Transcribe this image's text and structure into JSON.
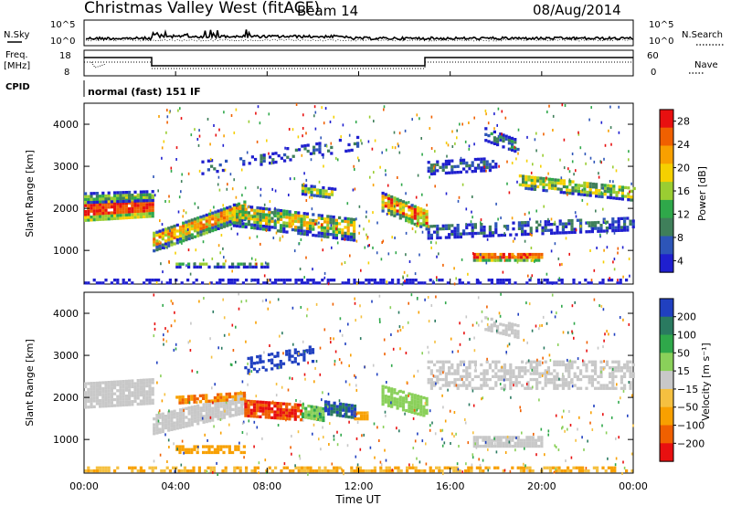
{
  "header": {
    "title": "Christmas Valley West (fitACF)",
    "beam": "Beam 14",
    "date": "08/Aug/2014"
  },
  "panels": {
    "nsky_label": "N.Sky",
    "nsky_ticks": [
      "10^5",
      "10^0"
    ],
    "nsearch_label": "N.Search",
    "nsearch_ticks": [
      "10^5",
      "10^0"
    ],
    "freq_label": "Freq.",
    "freq_unit": "[MHz]",
    "freq_ticks": [
      "18",
      "8"
    ],
    "nave_label": "Nave",
    "nave_ticks": [
      "60",
      "0"
    ],
    "cpid_label": "CPID",
    "cpid_value": "normal (fast) 151 IF"
  },
  "colors": {
    "power": [
      "#1f1fcf",
      "#2d55b8",
      "#3f7f5a",
      "#2fa84a",
      "#9acd32",
      "#f5d000",
      "#f8a000",
      "#f06000",
      "#e81010"
    ],
    "velocity": [
      "#e81010",
      "#f06000",
      "#f8a000",
      "#f5c040",
      "#c8c8c8",
      "#8ad05a",
      "#2fa84a",
      "#2a7a60",
      "#2040c0"
    ]
  },
  "chart_data": [
    {
      "type": "heatmap",
      "ylabel": "Slant Range [km]",
      "xlabel": "Time UT",
      "x_ticks": [
        "00:00",
        "04:00",
        "08:00",
        "12:00",
        "16:00",
        "20:00",
        "00:00"
      ],
      "y_ticks": [
        1000,
        2000,
        3000,
        4000
      ],
      "ylim": [
        200,
        4500
      ],
      "xlim_hours": [
        0,
        24
      ],
      "colorbar": {
        "label": "Power [dB]",
        "ticks": [
          4,
          8,
          12,
          16,
          20,
          24,
          28
        ],
        "range": [
          2,
          30
        ]
      }
    },
    {
      "type": "heatmap",
      "ylabel": "Slant Range [km]",
      "xlabel": "Time UT",
      "x_ticks": [
        "00:00",
        "04:00",
        "08:00",
        "12:00",
        "16:00",
        "20:00",
        "00:00"
      ],
      "y_ticks": [
        1000,
        2000,
        3000,
        4000
      ],
      "ylim": [
        200,
        4500
      ],
      "xlim_hours": [
        0,
        24
      ],
      "colorbar": {
        "label": "Velocity [m s⁻¹]",
        "ticks": [
          200,
          100,
          50,
          15,
          -15,
          -50,
          -100,
          -200
        ],
        "range": [
          -250,
          250
        ]
      }
    }
  ]
}
